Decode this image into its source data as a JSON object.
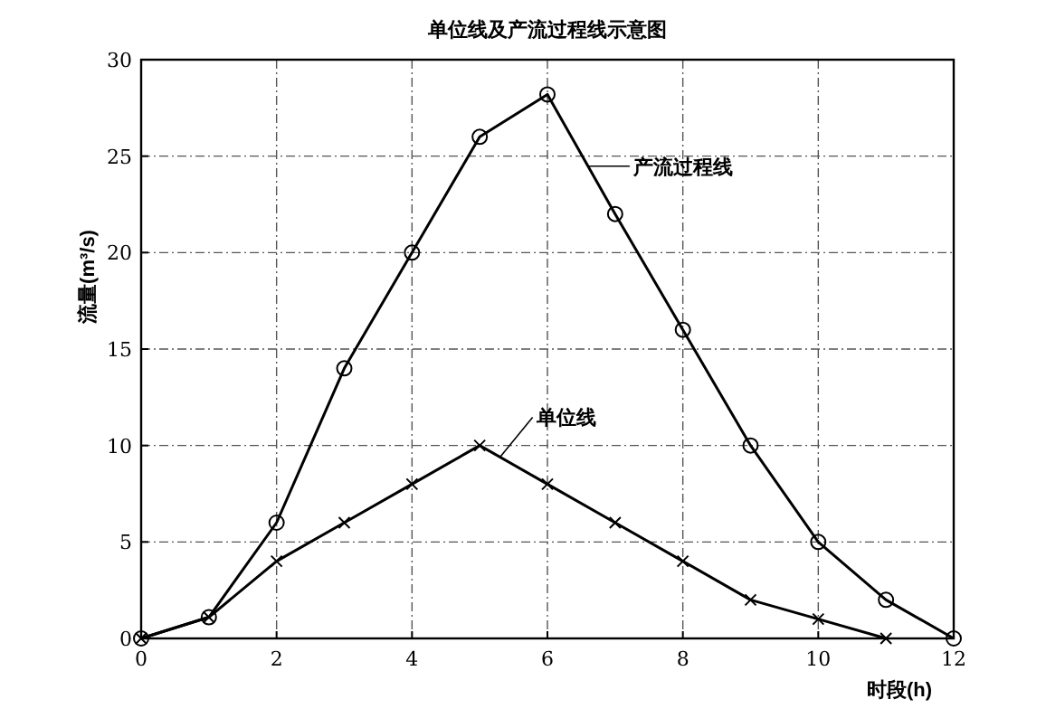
{
  "chart_data": {
    "type": "line",
    "title": "单位线及产流过程线示意图",
    "xlabel": "时段(h)",
    "ylabel": "流量(m³/s)",
    "xlim": [
      0,
      12
    ],
    "xticks": [
      0,
      2,
      4,
      6,
      8,
      10,
      12
    ],
    "ylim": [
      0,
      30
    ],
    "yticks": [
      0,
      5,
      10,
      15,
      20,
      25,
      30
    ],
    "grid": true,
    "series": [
      {
        "name": "产流过程线",
        "color": "#000000",
        "marker": "circle",
        "x": [
          0,
          1,
          2,
          3,
          4,
          5,
          6,
          7,
          8,
          9,
          10,
          11,
          12
        ],
        "values": [
          0,
          1.1,
          6,
          14,
          20,
          26,
          28.2,
          22,
          16,
          10,
          5,
          2,
          0
        ]
      },
      {
        "name": "单位线",
        "color": "#000000",
        "marker": "cross",
        "x": [
          0,
          1,
          2,
          3,
          4,
          5,
          6,
          7,
          8,
          9,
          10,
          11
        ],
        "values": [
          0,
          1.1,
          4,
          6,
          8,
          10,
          8,
          6,
          4,
          2,
          1,
          0
        ]
      }
    ]
  }
}
